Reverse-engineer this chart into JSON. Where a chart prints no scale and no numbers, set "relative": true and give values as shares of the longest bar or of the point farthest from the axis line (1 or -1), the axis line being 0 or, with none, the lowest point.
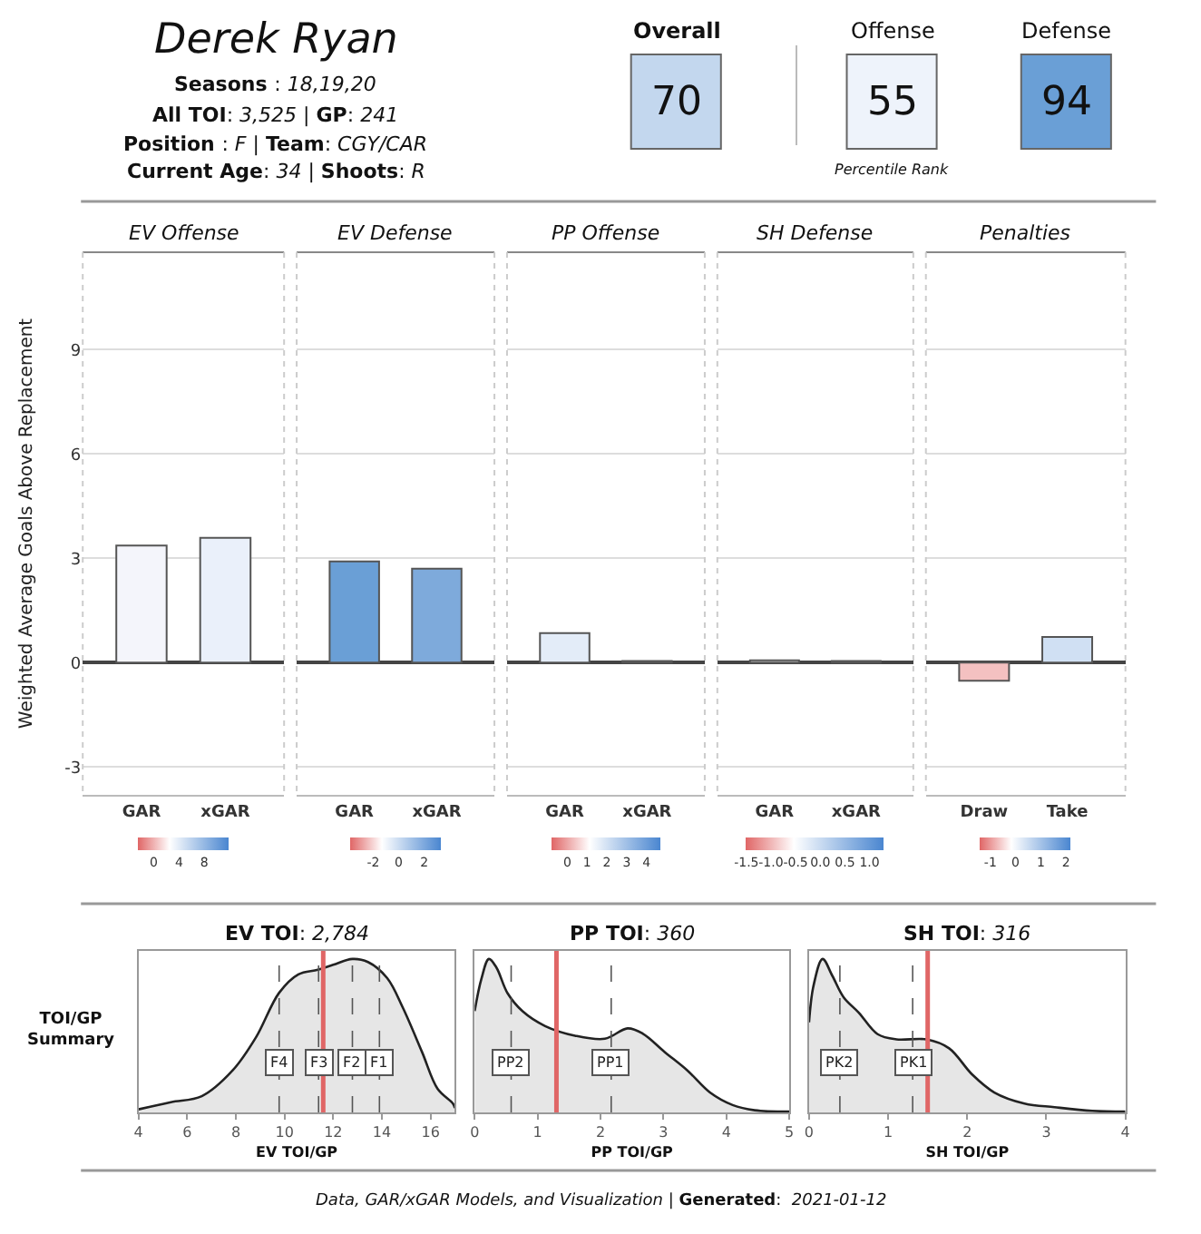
{
  "chart_data": [
    {
      "type": "other",
      "title": "Derek Ryan",
      "categories": [
        "Overall",
        "Offense",
        "Defense"
      ],
      "values": [
        70,
        55,
        94
      ],
      "colors": [
        "#c3d7ee",
        "#eef3fb",
        "#6a9fd6"
      ],
      "data_labels": true,
      "annotations": [
        "Seasons : 18,19,20",
        "All TOI: 3,525 | GP: 241",
        "Position : F | Team: CGY/CAR",
        "Current Age: 34 | Shoots: R",
        "Percentile Rank",
        "Data, GAR/xGAR Models, and Visualization | Generated:  2021-01-12"
      ]
    },
    {
      "type": "bar",
      "title": "EV Offense",
      "ylabel": "Weighted Average Goals Above Replacement",
      "categories": [
        "GAR",
        "xGAR"
      ],
      "values": [
        3.37,
        3.59
      ],
      "colors": [
        "#f4f5fb",
        "#eaf0fa"
      ],
      "ylim": [
        -3.8,
        11.8
      ],
      "yticks": [
        -3,
        0,
        3,
        6,
        9
      ],
      "grid": "y",
      "clim": [
        -2.5,
        11.9
      ],
      "cticks": [
        0,
        4,
        8
      ]
    },
    {
      "type": "bar",
      "title": "EV Defense",
      "categories": [
        "GAR",
        "xGAR"
      ],
      "values": [
        2.91,
        2.7
      ],
      "colors": [
        "#6a9fd6",
        "#7eaadb"
      ],
      "ylim": [
        -3.8,
        11.8
      ],
      "yticks": [
        -3,
        0,
        3,
        6,
        9
      ],
      "grid": "y",
      "tick_labels": "x",
      "clim": [
        -3.8,
        3.3
      ],
      "cticks": [
        -2,
        0,
        2
      ]
    },
    {
      "type": "bar",
      "title": "PP Offense",
      "categories": [
        "GAR",
        "xGAR"
      ],
      "values": [
        0.85,
        0.05
      ],
      "colors": [
        "#e3ecf8",
        "#f5f7fc"
      ],
      "ylim": [
        -3.8,
        11.8
      ],
      "yticks": [
        -3,
        0,
        3,
        6,
        9
      ],
      "grid": "y",
      "tick_labels": "x",
      "clim": [
        -0.8,
        4.7
      ],
      "cticks": [
        0,
        1,
        2,
        3,
        4
      ]
    },
    {
      "type": "bar",
      "title": "SH Defense",
      "categories": [
        "GAR",
        "xGAR"
      ],
      "values": [
        0.07,
        0.05
      ],
      "colors": [
        "#f3f3f3",
        "#f3f3f3"
      ],
      "ylim": [
        -3.8,
        11.8
      ],
      "yticks": [
        -3,
        0,
        3,
        6,
        9
      ],
      "grid": "y",
      "tick_labels": "x",
      "clim": [
        -1.5,
        1.3
      ],
      "cticks": [
        -1.5,
        {
          "value": -1,
          "label": "-1.0"
        },
        -0.5,
        {
          "value": 0,
          "label": "0.0"
        },
        0.5,
        {
          "value": 1,
          "label": "1.0"
        }
      ]
    },
    {
      "type": "bar",
      "title": "Penalties",
      "categories": [
        "Draw",
        "Take"
      ],
      "values": [
        -0.52,
        0.74
      ],
      "colors": [
        "#f4c1c1",
        "#d0e0f3"
      ],
      "ylim": [
        -3.8,
        11.8
      ],
      "yticks": [
        -3,
        0,
        3,
        6,
        9
      ],
      "grid": "y",
      "tick_labels": "x",
      "clim": [
        -1.4,
        2.2
      ],
      "cticks": [
        -1,
        0,
        1,
        2
      ]
    },
    {
      "type": "area",
      "relative": true,
      "title": "EV TOI: 2,784",
      "xlabel": "EV TOI/GP",
      "xlim": [
        4,
        17
      ],
      "xticks": [
        4,
        6,
        8,
        10,
        12,
        14,
        16
      ],
      "color": "#222222",
      "annotations": [
        "TOI/GP Summary"
      ],
      "x": [
        4.0,
        5.33,
        6.6,
        7.87,
        8.83,
        9.78,
        10.57,
        11.37,
        12.0,
        12.79,
        13.43,
        14.22,
        14.86,
        15.65,
        16.29,
        16.92,
        17.0
      ],
      "values": [
        0.02,
        0.067,
        0.106,
        0.274,
        0.49,
        0.78,
        0.9,
        0.93,
        0.962,
        1.0,
        0.98,
        0.875,
        0.683,
        0.394,
        0.154,
        0.058,
        0.029
      ],
      "ref_lines": [
        {
          "axis": "x",
          "value": 11.59,
          "label": null,
          "color": "#e06666",
          "line_style": "solid"
        },
        {
          "axis": "x",
          "value": 9.78,
          "label": "F4",
          "color": "#555555",
          "line_style": "dashed"
        },
        {
          "axis": "x",
          "value": 11.4,
          "label": "F3",
          "color": "#555555",
          "line_style": "dashed"
        },
        {
          "axis": "x",
          "value": 12.79,
          "label": "F2",
          "color": "#555555",
          "line_style": "dashed"
        },
        {
          "axis": "x",
          "value": 13.9,
          "label": "F1",
          "color": "#555555",
          "line_style": "dashed"
        }
      ]
    },
    {
      "type": "area",
      "relative": true,
      "title": "PP TOI: 360",
      "xlabel": "PP TOI/GP",
      "xlim": [
        0,
        5
      ],
      "xticks": [
        0,
        1,
        2,
        3,
        4,
        5
      ],
      "color": "#222222",
      "x": [
        0,
        0.107,
        0.226,
        0.345,
        0.524,
        0.762,
        1.12,
        1.595,
        2.07,
        2.43,
        2.67,
        3.02,
        3.38,
        3.74,
        4.1,
        4.45,
        5
      ],
      "values": [
        0.66,
        0.87,
        1.0,
        0.945,
        0.776,
        0.659,
        0.563,
        0.5,
        0.48,
        0.548,
        0.514,
        0.394,
        0.274,
        0.13,
        0.048,
        0.014,
        0.005
      ],
      "ref_lines": [
        {
          "axis": "x",
          "value": 1.3,
          "label": null,
          "color": "#e06666",
          "line_style": "solid"
        },
        {
          "axis": "x",
          "value": 0.58,
          "label": "PP2",
          "color": "#555555",
          "line_style": "dashed"
        },
        {
          "axis": "x",
          "value": 2.17,
          "label": "PP1",
          "color": "#555555",
          "line_style": "dashed"
        }
      ]
    },
    {
      "type": "area",
      "relative": true,
      "title": "SH TOI: 316",
      "xlabel": "SH TOI/GP",
      "xlim": [
        0,
        4
      ],
      "xticks": [
        0,
        1,
        2,
        3,
        4
      ],
      "color": "#222222",
      "x": [
        0,
        0.057,
        0.171,
        0.295,
        0.438,
        0.629,
        0.867,
        1.105,
        1.486,
        1.771,
        2.057,
        2.343,
        2.724,
        3.105,
        3.581,
        4
      ],
      "values": [
        0.587,
        0.827,
        1.0,
        0.89,
        0.75,
        0.65,
        0.51,
        0.476,
        0.476,
        0.418,
        0.25,
        0.13,
        0.058,
        0.034,
        0.01,
        0.005
      ],
      "ref_lines": [
        {
          "axis": "x",
          "value": 1.5,
          "label": null,
          "color": "#e06666",
          "line_style": "solid"
        },
        {
          "axis": "x",
          "value": 0.39,
          "label": "PK2",
          "color": "#555555",
          "line_style": "dashed"
        },
        {
          "axis": "x",
          "value": 1.31,
          "label": "PK1",
          "color": "#555555",
          "line_style": "dashed"
        }
      ]
    }
  ]
}
